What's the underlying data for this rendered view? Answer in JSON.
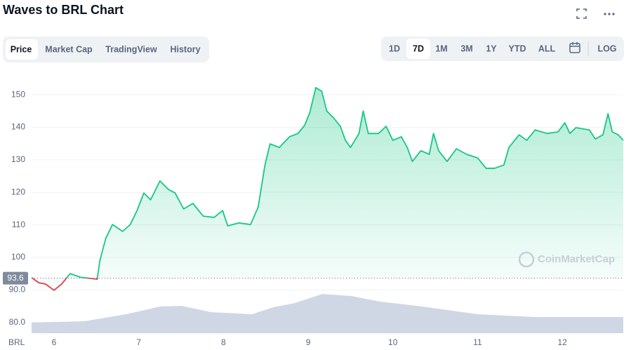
{
  "chart_data": {
    "type": "line",
    "title": "Waves to BRL Chart",
    "axis_label": "BRL",
    "baseline": 93.6,
    "watermark": "CoinMarketCap",
    "series": [
      {
        "color": "#16c784",
        "below_color": "#ea3943",
        "x": [
          5.735,
          5.82,
          5.9,
          6.0,
          6.09,
          6.19,
          6.31,
          6.44,
          6.51,
          6.54,
          6.61,
          6.69,
          6.81,
          6.9,
          6.98,
          7.06,
          7.14,
          7.25,
          7.35,
          7.43,
          7.53,
          7.64,
          7.76,
          7.89,
          7.99,
          8.05,
          8.18,
          8.32,
          8.41,
          8.49,
          8.55,
          8.66,
          8.78,
          8.88,
          8.96,
          9.02,
          9.09,
          9.16,
          9.22,
          9.3,
          9.38,
          9.44,
          9.5,
          9.6,
          9.65,
          9.71,
          9.83,
          9.92,
          10.0,
          10.1,
          10.17,
          10.23,
          10.33,
          10.43,
          10.48,
          10.54,
          10.64,
          10.75,
          10.87,
          11.0,
          11.1,
          11.2,
          11.31,
          11.37,
          11.49,
          11.58,
          11.68,
          11.82,
          11.95,
          12.03,
          12.09,
          12.16,
          12.32,
          12.39,
          12.48,
          12.54,
          12.59,
          12.66,
          12.72
        ],
        "values": [
          93.8,
          92.2,
          91.8,
          89.9,
          91.8,
          95.0,
          93.9,
          93.5,
          93.3,
          98.9,
          105.8,
          110.1,
          108.0,
          110.1,
          114.4,
          119.8,
          117.7,
          123.5,
          120.9,
          119.8,
          114.9,
          116.6,
          112.7,
          112.3,
          114.4,
          109.7,
          110.6,
          110.1,
          115.5,
          128.4,
          134.9,
          133.8,
          137.1,
          138.1,
          140.7,
          144.6,
          152.2,
          151.1,
          145.0,
          142.9,
          140.3,
          136.0,
          133.8,
          138.1,
          145.0,
          138.1,
          138.1,
          140.3,
          136.0,
          137.1,
          133.8,
          129.5,
          132.8,
          131.7,
          138.1,
          132.8,
          129.5,
          133.4,
          131.7,
          130.6,
          127.4,
          127.4,
          128.4,
          133.8,
          137.7,
          136.0,
          139.2,
          138.1,
          138.6,
          141.4,
          138.1,
          139.9,
          139.2,
          136.4,
          137.7,
          144.2,
          138.6,
          137.7,
          136.0
        ]
      },
      {
        "color": "#cfd6e4",
        "axis": "y2",
        "x": [
          5.735,
          6.36,
          6.85,
          7.26,
          7.51,
          7.85,
          8.34,
          8.59,
          8.84,
          9.17,
          9.51,
          9.84,
          10.34,
          11.0,
          11.67,
          12.72
        ],
        "values": [
          4.1,
          4.6,
          7.3,
          10.3,
          10.5,
          8.1,
          7.3,
          10.0,
          11.6,
          15.1,
          14.3,
          12.2,
          10.3,
          7.3,
          6.2,
          6.2
        ]
      }
    ],
    "xlim": [
      5.735,
      12.72
    ],
    "xticks": [
      6,
      7,
      8,
      9,
      10,
      11,
      12
    ],
    "ylim": [
      76.7,
      156.5
    ],
    "yticks": [
      {
        "value": 80,
        "label": "80.0"
      },
      {
        "value": 90,
        "label": "90.0"
      },
      100,
      110,
      120,
      130,
      140,
      150
    ],
    "y2lim": [
      0,
      100
    ],
    "grid": true
  },
  "toolbar": {
    "tabs": [
      "Price",
      "Market Cap",
      "TradingView",
      "History"
    ],
    "ranges": [
      "1D",
      "7D",
      "1M",
      "3M",
      "1Y",
      "YTD",
      "ALL"
    ],
    "log": "LOG"
  }
}
